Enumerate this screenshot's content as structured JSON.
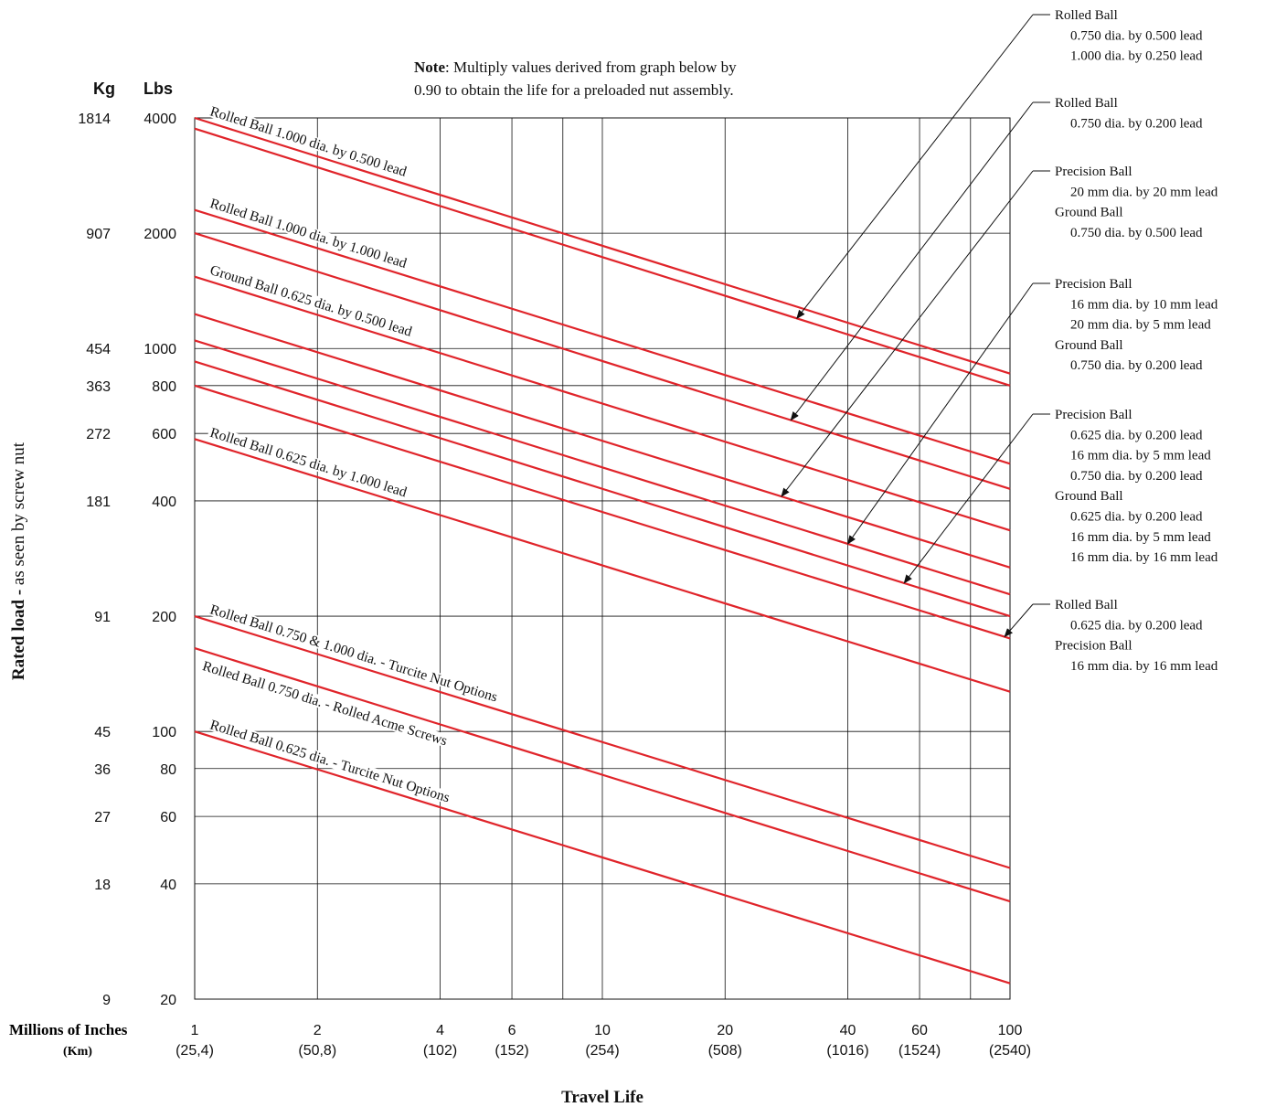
{
  "chart_data": {
    "type": "line",
    "note_bold": "Note",
    "note_line1": ": Multiply values derived from graph below by",
    "note_line2": "0.90 to obtain the life for a preloaded nut assembly.",
    "xlabel": "Travel Life",
    "ylabel_bold": "Rated load -",
    "ylabel_rest": " as seen by screw nut",
    "x_scale": "log",
    "y_scale": "log",
    "xlim": [
      1,
      100
    ],
    "ylim": [
      20,
      4000
    ],
    "x_unit_title": "Millions of Inches",
    "x_unit2_title": "(Km)",
    "y_unit_lbs": "Lbs",
    "y_unit_kg": "Kg",
    "x_ticks": [
      {
        "value": 1,
        "label": "1",
        "km": "(25,4)"
      },
      {
        "value": 2,
        "label": "2",
        "km": "(50,8)"
      },
      {
        "value": 4,
        "label": "4",
        "km": "(102)"
      },
      {
        "value": 6,
        "label": "6",
        "km": "(152)"
      },
      {
        "value": 10,
        "label": "10",
        "km": "(254)"
      },
      {
        "value": 20,
        "label": "20",
        "km": "(508)"
      },
      {
        "value": 40,
        "label": "40",
        "km": "(1016)"
      },
      {
        "value": 60,
        "label": "60",
        "km": "(1524)"
      },
      {
        "value": 100,
        "label": "100",
        "km": "(2540)"
      }
    ],
    "x_grid_minor": [
      8,
      80
    ],
    "y_ticks": [
      {
        "value": 4000,
        "lbs": "4000",
        "kg": "1814"
      },
      {
        "value": 2000,
        "lbs": "2000",
        "kg": "907"
      },
      {
        "value": 1000,
        "lbs": "1000",
        "kg": "454"
      },
      {
        "value": 800,
        "lbs": "800",
        "kg": "363"
      },
      {
        "value": 600,
        "lbs": "600",
        "kg": "272"
      },
      {
        "value": 400,
        "lbs": "400",
        "kg": "181"
      },
      {
        "value": 200,
        "lbs": "200",
        "kg": "91"
      },
      {
        "value": 100,
        "lbs": "100",
        "kg": "45"
      },
      {
        "value": 80,
        "lbs": "80",
        "kg": "36"
      },
      {
        "value": 60,
        "lbs": "60",
        "kg": "27"
      },
      {
        "value": 40,
        "lbs": "40",
        "kg": "18"
      },
      {
        "value": 20,
        "lbs": "20",
        "kg": "9"
      }
    ],
    "line_color": "#e0242a",
    "series": [
      {
        "x": [
          1,
          100
        ],
        "y": [
          4000,
          860
        ]
      },
      {
        "x": [
          1,
          100
        ],
        "y": [
          3750,
          800
        ]
      },
      {
        "x": [
          1,
          100
        ],
        "y": [
          2300,
          500
        ]
      },
      {
        "x": [
          1,
          100
        ],
        "y": [
          2000,
          430
        ]
      },
      {
        "x": [
          1,
          100
        ],
        "y": [
          1540,
          335
        ]
      },
      {
        "x": [
          1,
          100
        ],
        "y": [
          1230,
          268
        ]
      },
      {
        "x": [
          1,
          100
        ],
        "y": [
          1050,
          228
        ]
      },
      {
        "x": [
          1,
          100
        ],
        "y": [
          925,
          200
        ]
      },
      {
        "x": [
          1,
          100
        ],
        "y": [
          800,
          175
        ]
      },
      {
        "x": [
          1,
          100
        ],
        "y": [
          580,
          127
        ]
      },
      {
        "x": [
          1,
          100
        ],
        "y": [
          200,
          44
        ]
      },
      {
        "x": [
          1,
          100
        ],
        "y": [
          165,
          36
        ]
      },
      {
        "x": [
          1,
          100
        ],
        "y": [
          100,
          22
        ]
      }
    ],
    "line_labels": [
      {
        "text": "Rolled Ball 1.000 dia. by 0.500 lead",
        "series": 0
      },
      {
        "text": "Rolled Ball 1.000 dia. by 1.000 lead",
        "series": 2
      },
      {
        "text": "Ground Ball 0.625 dia. by 0.500 lead",
        "series": 4
      },
      {
        "text": "Rolled Ball 0.625 dia. by 1.000 lead",
        "series": 9
      },
      {
        "text": "Rolled Ball 0.750 & 1.000 dia. - Turcite Nut Options",
        "series": 10
      },
      {
        "text": "Rolled Ball 0.750 dia. - Rolled Acme Screws",
        "series": 11
      },
      {
        "text": "Rolled Ball 0.625 dia. - Turcite Nut Options",
        "series": 12
      }
    ],
    "callouts": [
      {
        "lines": [
          "Rolled Ball",
          "0.750 dia. by 0.500 lead",
          "1.000 dia. by 0.250 lead"
        ],
        "arrow_x": 30,
        "series": 1
      },
      {
        "lines": [
          "Rolled Ball",
          "0.750 dia. by 0.200 lead"
        ],
        "arrow_x": 29,
        "series": 3
      },
      {
        "lines": [
          "Precision Ball",
          "20 mm dia. by 20 mm lead",
          "Ground Ball",
          "0.750 dia. by 0.500 lead"
        ],
        "arrow_x": 27.5,
        "series": 5
      },
      {
        "lines": [
          "Precision Ball",
          "16 mm dia. by 10 mm lead",
          "20 mm dia. by 5 mm lead",
          "Ground Ball",
          "0.750 dia. by 0.200 lead"
        ],
        "arrow_x": 40,
        "series": 6
      },
      {
        "lines": [
          "Precision Ball",
          "0.625 dia. by 0.200 lead",
          "16 mm dia. by 5 mm lead",
          "0.750 dia. by 0.200 lead",
          "Ground Ball",
          "0.625 dia. by 0.200 lead",
          "16 mm dia. by 5 mm lead",
          "16 mm dia. by 16 mm lead"
        ],
        "arrow_x": 55,
        "series": 7
      },
      {
        "lines": [
          "Rolled Ball",
          "0.625 dia. by 0.200 lead",
          "Precision Ball",
          "16 mm dia. by 16 mm lead"
        ],
        "arrow_x": 97,
        "series": 8
      }
    ]
  }
}
